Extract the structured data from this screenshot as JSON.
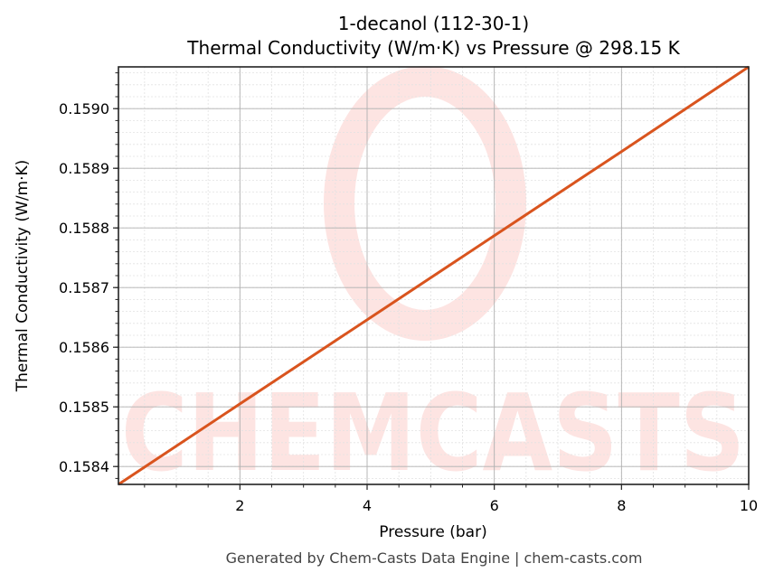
{
  "chart_data": {
    "type": "line",
    "title": "1-decanol (112-30-1)",
    "subtitle": "Thermal Conductivity (W/m·K) vs Pressure @ 298.15 K",
    "xlabel": "Pressure (bar)",
    "ylabel": "Thermal Conductivity (W/m·K)",
    "xlim": [
      0.09,
      10
    ],
    "ylim": [
      0.15837,
      0.15907
    ],
    "xticks": [
      2,
      4,
      6,
      8,
      10
    ],
    "xtick_labels": [
      "2",
      "4",
      "6",
      "8",
      "10"
    ],
    "yticks": [
      0.1584,
      0.1585,
      0.1586,
      0.1587,
      0.1588,
      0.1589,
      0.159
    ],
    "ytick_labels": [
      "0.1584",
      "0.1585",
      "0.1586",
      "0.1587",
      "0.1588",
      "0.1589",
      "0.1590"
    ],
    "grid": true,
    "minor_grid": true,
    "legend": null,
    "series": [
      {
        "name": "Thermal Conductivity",
        "color": "#d9541e",
        "x": [
          0.09,
          2,
          4,
          6,
          8,
          10
        ],
        "values": [
          0.15837,
          0.158505,
          0.158646,
          0.158787,
          0.158928,
          0.15907
        ]
      }
    ],
    "watermark": "CHEMCASTS",
    "watermark_color": "#fde4e2"
  },
  "footer": "Generated by Chem-Casts Data Engine | chem-casts.com"
}
